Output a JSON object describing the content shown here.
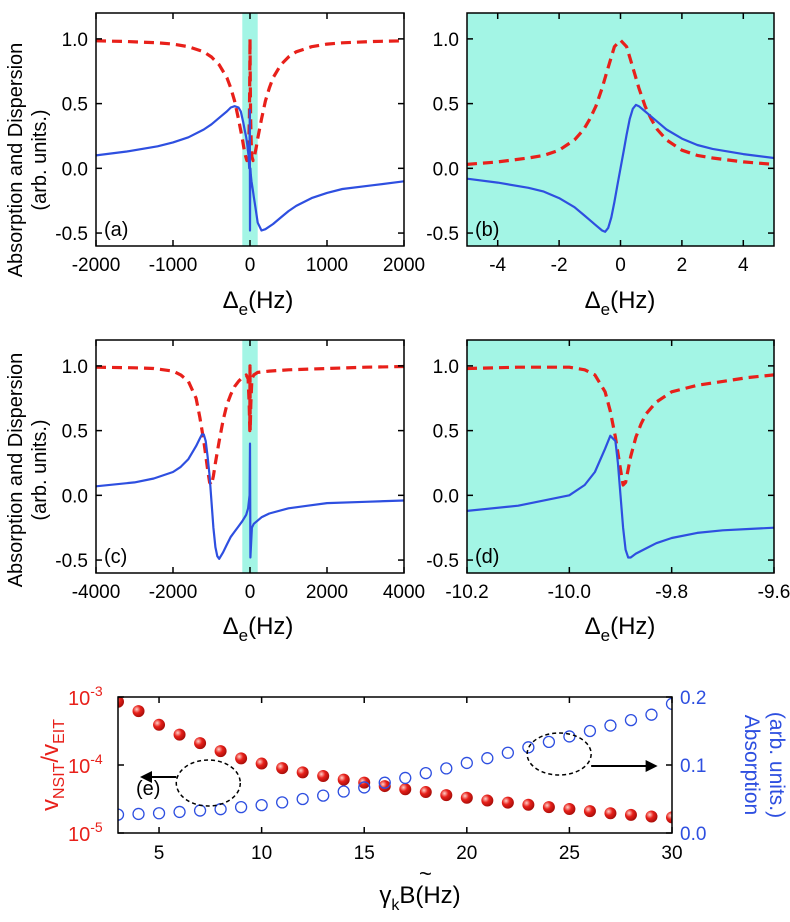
{
  "colors": {
    "absorption": "#e8201a",
    "dispersion": "#2e4fe0",
    "highlight": "#a3f5e5",
    "axis": "#000000"
  },
  "labels": {
    "ylabel_top_line1": "Absorption and Dispersion",
    "ylabel_top_line2": "(arb. units.)",
    "ylabel_mid_line1": "Absorption and Dispersion",
    "ylabel_mid_line2": "(arb. units.)",
    "xlabel_a": "Δ",
    "xlabel_b": "Δ",
    "xlabel_c": "Δ",
    "xlabel_d": "Δ",
    "xlabel_sub": "e",
    "xlabel_unit": "(Hz)",
    "e_left_v1": "v",
    "e_left_sub1": "NSIT",
    "e_left_slash": "/v",
    "e_left_sub2": "EIT",
    "e_right_line1": "Absorption",
    "e_right_line2": "(arb. units.)",
    "e_xlabel_gamma": "γ",
    "e_xlabel_k": "k",
    "e_xlabel_B": "B",
    "e_xlabel_tilde": "~",
    "e_xlabel_unit": "(Hz)"
  },
  "chart_data": [
    {
      "id": "a",
      "type": "line",
      "panel_label": "(a)",
      "xlim": [
        -2000,
        2000
      ],
      "ylim": [
        -0.6,
        1.2
      ],
      "xticks": [
        -2000,
        -1000,
        0,
        1000,
        2000
      ],
      "yticks": [
        -0.5,
        0.0,
        0.5,
        1.0
      ],
      "xtick_labels": [
        "-2000",
        "-1000",
        "0",
        "1000",
        "2000"
      ],
      "ytick_labels": [
        "-0.5",
        "0.0",
        "0.5",
        "1.0"
      ],
      "shaded_x": [
        -100,
        100
      ],
      "series": [
        {
          "style": "dashed-red",
          "x": [
            -2000,
            -1600,
            -1200,
            -1000,
            -800,
            -600,
            -500,
            -400,
            -300,
            -250,
            -200,
            -150,
            -100,
            -80,
            -60,
            -40,
            -25,
            -15,
            -8,
            -4,
            0,
            4,
            8,
            15,
            25,
            40,
            60,
            80,
            100,
            150,
            200,
            250,
            300,
            400,
            500,
            600,
            800,
            1000,
            1200,
            1600,
            2000
          ],
          "y": [
            0.985,
            0.98,
            0.97,
            0.96,
            0.94,
            0.9,
            0.86,
            0.8,
            0.7,
            0.62,
            0.52,
            0.38,
            0.23,
            0.16,
            0.1,
            0.06,
            0.09,
            0.2,
            0.4,
            0.65,
            1.0,
            0.65,
            0.4,
            0.2,
            0.09,
            0.06,
            0.1,
            0.16,
            0.23,
            0.38,
            0.52,
            0.62,
            0.7,
            0.8,
            0.86,
            0.9,
            0.94,
            0.96,
            0.97,
            0.98,
            0.985
          ]
        },
        {
          "style": "solid-blue",
          "x": [
            -2000,
            -1600,
            -1200,
            -1000,
            -800,
            -600,
            -500,
            -400,
            -300,
            -250,
            -200,
            -150,
            -120,
            -90,
            -70,
            -50,
            -35,
            -20,
            -10,
            -5,
            -2,
            -1,
            0,
            1,
            2,
            5,
            10,
            20,
            35,
            50,
            70,
            100,
            150,
            200,
            300,
            400,
            500,
            600,
            800,
            1000,
            1200,
            1600,
            2000
          ],
          "y": [
            0.1,
            0.13,
            0.17,
            0.2,
            0.24,
            0.3,
            0.34,
            0.39,
            0.44,
            0.47,
            0.48,
            0.47,
            0.44,
            0.36,
            0.3,
            0.24,
            0.18,
            0.1,
            0.0,
            0.2,
            0.45,
            0.0,
            -0.48,
            -0.25,
            -0.1,
            0.0,
            -0.05,
            -0.1,
            -0.16,
            -0.22,
            -0.3,
            -0.42,
            -0.48,
            -0.47,
            -0.43,
            -0.38,
            -0.33,
            -0.29,
            -0.23,
            -0.19,
            -0.16,
            -0.13,
            -0.1
          ]
        }
      ]
    },
    {
      "id": "b",
      "type": "line",
      "panel_label": "(b)",
      "xlim": [
        -5,
        5
      ],
      "ylim": [
        -0.6,
        1.2
      ],
      "xticks": [
        -4,
        -2,
        0,
        2,
        4
      ],
      "yticks": [
        -0.5,
        0.0,
        0.5,
        1.0
      ],
      "xtick_labels": [
        "-4",
        "-2",
        "0",
        "2",
        "4"
      ],
      "ytick_labels": [
        "-0.5",
        "0.0",
        "0.5",
        "1.0"
      ],
      "shaded_x": [
        -5,
        5
      ],
      "series": [
        {
          "style": "dashed-red",
          "x": [
            -5,
            -4,
            -3,
            -2.5,
            -2,
            -1.5,
            -1.2,
            -1,
            -0.8,
            -0.6,
            -0.4,
            -0.2,
            0,
            0.2,
            0.4,
            0.6,
            0.8,
            1,
            1.2,
            1.5,
            2,
            2.5,
            3,
            4,
            5
          ],
          "y": [
            0.03,
            0.05,
            0.08,
            0.1,
            0.14,
            0.22,
            0.3,
            0.38,
            0.48,
            0.62,
            0.78,
            0.94,
            0.99,
            0.94,
            0.78,
            0.62,
            0.48,
            0.38,
            0.3,
            0.22,
            0.14,
            0.1,
            0.08,
            0.05,
            0.03
          ]
        },
        {
          "style": "solid-blue",
          "x": [
            -5,
            -4,
            -3,
            -2.5,
            -2,
            -1.5,
            -1.2,
            -1,
            -0.8,
            -0.6,
            -0.5,
            -0.4,
            -0.3,
            -0.2,
            -0.1,
            0,
            0.1,
            0.2,
            0.3,
            0.4,
            0.5,
            0.6,
            0.8,
            1,
            1.2,
            1.5,
            2,
            2.5,
            3,
            4,
            5
          ],
          "y": [
            -0.08,
            -0.11,
            -0.15,
            -0.18,
            -0.23,
            -0.3,
            -0.36,
            -0.4,
            -0.44,
            -0.48,
            -0.49,
            -0.46,
            -0.38,
            -0.26,
            -0.13,
            0.0,
            0.13,
            0.26,
            0.38,
            0.46,
            0.49,
            0.48,
            0.44,
            0.4,
            0.36,
            0.3,
            0.23,
            0.18,
            0.15,
            0.11,
            0.08
          ]
        }
      ]
    },
    {
      "id": "c",
      "type": "line",
      "panel_label": "(c)",
      "xlim": [
        -4000,
        4000
      ],
      "ylim": [
        -0.6,
        1.2
      ],
      "xticks": [
        -4000,
        -2000,
        0,
        2000,
        4000
      ],
      "yticks": [
        -0.5,
        0.0,
        0.5,
        1.0
      ],
      "xtick_labels": [
        "-4000",
        "-2000",
        "0",
        "2000",
        "4000"
      ],
      "ytick_labels": [
        "-0.5",
        "0.0",
        "0.5",
        "1.0"
      ],
      "shaded_x": [
        -200,
        200
      ],
      "series": [
        {
          "style": "dashed-red",
          "x": [
            -4000,
            -3000,
            -2500,
            -2000,
            -1800,
            -1600,
            -1400,
            -1300,
            -1200,
            -1100,
            -1050,
            -1000,
            -950,
            -900,
            -800,
            -700,
            -600,
            -500,
            -400,
            -300,
            -200,
            -100,
            -50,
            -20,
            -5,
            0,
            5,
            20,
            50,
            100,
            200,
            500,
            1000,
            2000,
            3000,
            4000
          ],
          "y": [
            0.99,
            0.985,
            0.98,
            0.96,
            0.93,
            0.88,
            0.75,
            0.6,
            0.42,
            0.2,
            0.1,
            0.08,
            0.15,
            0.25,
            0.42,
            0.58,
            0.7,
            0.78,
            0.84,
            0.88,
            0.91,
            0.93,
            0.9,
            0.7,
            0.5,
            1.0,
            0.5,
            0.7,
            0.9,
            0.93,
            0.95,
            0.96,
            0.97,
            0.98,
            0.99,
            0.995
          ]
        },
        {
          "style": "solid-blue",
          "x": [
            -4000,
            -3000,
            -2500,
            -2000,
            -1800,
            -1600,
            -1400,
            -1300,
            -1250,
            -1200,
            -1150,
            -1100,
            -1050,
            -1000,
            -950,
            -900,
            -850,
            -800,
            -700,
            -600,
            -500,
            -400,
            -300,
            -200,
            -100,
            -50,
            -10,
            0,
            10,
            50,
            100,
            300,
            500,
            1000,
            1500,
            2000,
            3000,
            4000
          ],
          "y": [
            0.07,
            0.1,
            0.13,
            0.18,
            0.22,
            0.28,
            0.38,
            0.44,
            0.47,
            0.47,
            0.42,
            0.3,
            0.15,
            -0.05,
            -0.25,
            -0.4,
            -0.47,
            -0.49,
            -0.44,
            -0.38,
            -0.32,
            -0.28,
            -0.24,
            -0.2,
            -0.15,
            -0.1,
            0.0,
            0.4,
            -0.48,
            -0.25,
            -0.22,
            -0.17,
            -0.14,
            -0.1,
            -0.08,
            -0.06,
            -0.05,
            -0.04
          ]
        }
      ]
    },
    {
      "id": "d",
      "type": "line",
      "panel_label": "(d)",
      "xlim": [
        -10.2,
        -9.6
      ],
      "ylim": [
        -0.6,
        1.2
      ],
      "xticks": [
        -10.2,
        -10.0,
        -9.8,
        -9.6
      ],
      "yticks": [
        -0.5,
        0.0,
        0.5,
        1.0
      ],
      "xtick_labels": [
        "-10.2",
        "-10.0",
        "-9.8",
        "-9.6"
      ],
      "ytick_labels": [
        "-0.5",
        "0.0",
        "0.5",
        "1.0"
      ],
      "shaded_x": [
        -10.2,
        -9.6
      ],
      "series": [
        {
          "style": "dashed-red",
          "x": [
            -10.2,
            -10.1,
            -10.0,
            -9.97,
            -9.95,
            -9.93,
            -9.92,
            -9.91,
            -9.9,
            -9.895,
            -9.89,
            -9.88,
            -9.87,
            -9.86,
            -9.85,
            -9.83,
            -9.8,
            -9.75,
            -9.7,
            -9.65,
            -9.6
          ],
          "y": [
            0.98,
            0.99,
            0.99,
            0.97,
            0.93,
            0.8,
            0.65,
            0.45,
            0.2,
            0.08,
            0.1,
            0.3,
            0.45,
            0.55,
            0.63,
            0.72,
            0.8,
            0.85,
            0.88,
            0.91,
            0.93
          ]
        },
        {
          "style": "solid-blue",
          "x": [
            -10.2,
            -10.1,
            -10.0,
            -9.97,
            -9.95,
            -9.93,
            -9.92,
            -9.91,
            -9.905,
            -9.9,
            -9.895,
            -9.89,
            -9.885,
            -9.88,
            -9.87,
            -9.85,
            -9.83,
            -9.8,
            -9.75,
            -9.7,
            -9.65,
            -9.6
          ],
          "y": [
            -0.12,
            -0.08,
            0.0,
            0.08,
            0.18,
            0.36,
            0.46,
            0.42,
            0.25,
            0.0,
            -0.25,
            -0.42,
            -0.48,
            -0.48,
            -0.45,
            -0.41,
            -0.37,
            -0.33,
            -0.29,
            -0.27,
            -0.26,
            -0.25
          ]
        }
      ]
    },
    {
      "id": "e",
      "type": "scatter",
      "panel_label": "(e)",
      "xlim": [
        3,
        30
      ],
      "xticks": [
        5,
        10,
        15,
        20,
        25,
        30
      ],
      "xtick_labels": [
        "5",
        "10",
        "15",
        "20",
        "25",
        "30"
      ],
      "y_left_log": true,
      "y_left_lim": [
        1e-05,
        0.001
      ],
      "y_left_ticks": [
        1e-05,
        0.0001,
        0.001
      ],
      "y_left_tick_labels": [
        [
          "10",
          "-5"
        ],
        [
          "10",
          "-4"
        ],
        [
          "10",
          "-3"
        ]
      ],
      "y_right_lim": [
        0,
        0.2
      ],
      "y_right_ticks": [
        0.0,
        0.1,
        0.2
      ],
      "y_right_tick_labels": [
        "0.0",
        "0.1",
        "0.2"
      ],
      "series": [
        {
          "axis": "left",
          "style": "filled-red",
          "x": [
            3,
            4,
            5,
            6,
            7,
            8,
            9,
            10,
            11,
            12,
            13,
            14,
            15,
            16,
            17,
            18,
            19,
            20,
            21,
            22,
            23,
            24,
            25,
            26,
            27,
            28,
            29,
            30
          ],
          "y": [
            0.00085,
            0.00062,
            0.00039,
            0.00028,
            0.00021,
            0.00016,
            0.000125,
            0.000105,
            9e-05,
            7.8e-05,
            6.9e-05,
            6.1e-05,
            5.5e-05,
            4.9e-05,
            4.4e-05,
            4e-05,
            3.6e-05,
            3.3e-05,
            3e-05,
            2.8e-05,
            2.6e-05,
            2.4e-05,
            2.25e-05,
            2.1e-05,
            1.95e-05,
            1.85e-05,
            1.75e-05,
            1.7e-05
          ]
        },
        {
          "axis": "right",
          "style": "open-blue",
          "x": [
            3,
            4,
            5,
            6,
            7,
            8,
            9,
            10,
            11,
            12,
            13,
            14,
            15,
            16,
            17,
            18,
            19,
            20,
            21,
            22,
            23,
            24,
            25,
            26,
            27,
            28,
            29,
            30
          ],
          "y": [
            0.027,
            0.028,
            0.029,
            0.031,
            0.033,
            0.035,
            0.038,
            0.041,
            0.045,
            0.05,
            0.055,
            0.061,
            0.067,
            0.074,
            0.081,
            0.088,
            0.095,
            0.103,
            0.11,
            0.118,
            0.126,
            0.134,
            0.142,
            0.15,
            0.158,
            0.166,
            0.174,
            0.19
          ]
        }
      ]
    }
  ]
}
